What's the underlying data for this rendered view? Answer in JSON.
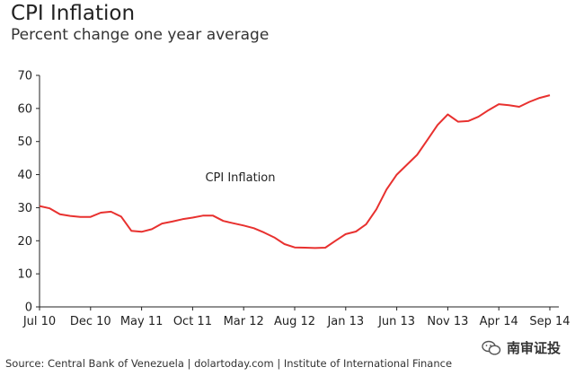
{
  "chart_data": {
    "type": "line",
    "title": "CPI Inflation",
    "subtitle": "Percent change one year average",
    "ylim": [
      0,
      70
    ],
    "yticks": [
      0,
      10,
      20,
      30,
      40,
      50,
      60,
      70
    ],
    "xticks": [
      "Jul 10",
      "Dec 10",
      "May 11",
      "Oct 11",
      "Mar 12",
      "Aug 12",
      "Jan 13",
      "Jun 13",
      "Nov 13",
      "Apr 14",
      "Sep 14"
    ],
    "x": [
      "Jul 10",
      "Aug 10",
      "Sep 10",
      "Oct 10",
      "Nov 10",
      "Dec 10",
      "Jan 11",
      "Feb 11",
      "Mar 11",
      "Apr 11",
      "May 11",
      "Jun 11",
      "Jul 11",
      "Aug 11",
      "Sep 11",
      "Oct 11",
      "Nov 11",
      "Dec 11",
      "Jan 12",
      "Feb 12",
      "Mar 12",
      "Apr 12",
      "May 12",
      "Jun 12",
      "Jul 12",
      "Aug 12",
      "Sep 12",
      "Oct 12",
      "Nov 12",
      "Dec 12",
      "Jan 13",
      "Feb 13",
      "Mar 13",
      "Apr 13",
      "May 13",
      "Jun 13",
      "Jul 13",
      "Aug 13",
      "Sep 13",
      "Oct 13",
      "Nov 13",
      "Dec 13",
      "Jan 14",
      "Feb 14",
      "Mar 14",
      "Apr 14",
      "May 14",
      "Jun 14",
      "Jul 14",
      "Aug 14",
      "Sep 14"
    ],
    "series": [
      {
        "name": "CPI Inflation",
        "color": "#e8312f",
        "values": [
          30.5,
          29.8,
          28.0,
          27.5,
          27.2,
          27.2,
          28.5,
          28.8,
          27.3,
          23.0,
          22.7,
          23.5,
          25.2,
          25.8,
          26.5,
          27.0,
          27.6,
          27.6,
          26.0,
          25.3,
          24.6,
          23.8,
          22.5,
          21.0,
          19.0,
          18.0,
          17.9,
          17.8,
          17.9,
          20.0,
          22.0,
          22.8,
          25.0,
          29.5,
          35.5,
          40.0,
          43.0,
          46.0,
          50.5,
          55.0,
          58.2,
          56.0,
          56.2,
          57.5,
          59.5,
          61.3,
          61.0,
          60.5,
          62.0,
          63.2,
          64.0
        ]
      }
    ],
    "annotations": [
      {
        "text": "CPI Inflation",
        "x": "Jan 12",
        "y": 38
      }
    ],
    "grid": false,
    "xlabel": "",
    "ylabel": ""
  },
  "source": "Source: Central Bank of Venezuela | dolartoday.com | Institute of International Finance",
  "watermark": {
    "text": "南审证投",
    "icon": "wechat-icon"
  }
}
